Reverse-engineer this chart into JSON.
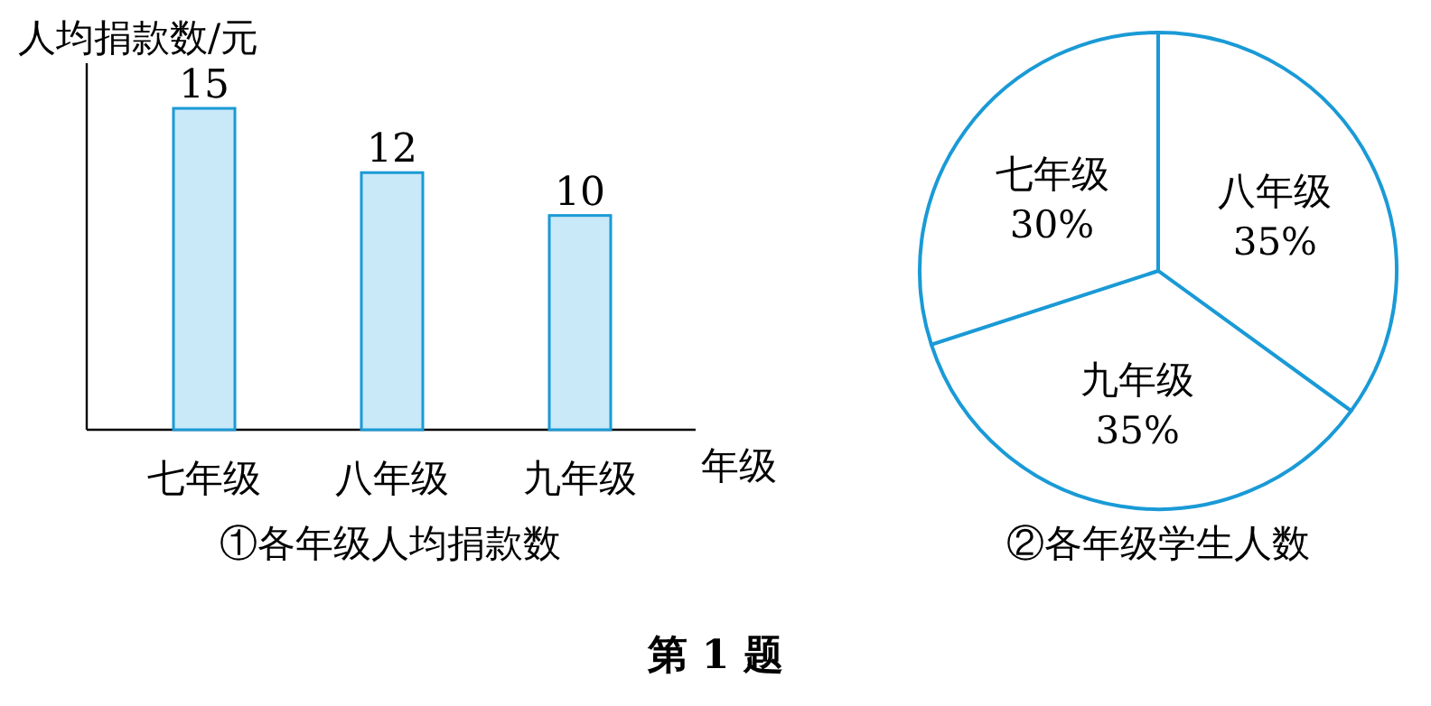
{
  "chart_data": [
    {
      "type": "bar",
      "title": "①各年级人均捐款数",
      "xlabel": "年级",
      "ylabel": "人均捐款数/元",
      "categories": [
        "七年级",
        "八年级",
        "九年级"
      ],
      "values": [
        15,
        12,
        10
      ],
      "color": "#c9e9f9",
      "data_labels": true,
      "tick_labels": "x",
      "annotations": [
        "第 1 题"
      ]
    },
    {
      "type": "pie",
      "title": "②各年级学生人数",
      "categories": [
        "八年级",
        "九年级",
        "七年级"
      ],
      "values": [
        35,
        35,
        30
      ],
      "value_labels": [
        "35%",
        "35%",
        "30%"
      ],
      "colors": [
        "#ffffff",
        "#ffffff",
        "#ffffff"
      ]
    }
  ]
}
